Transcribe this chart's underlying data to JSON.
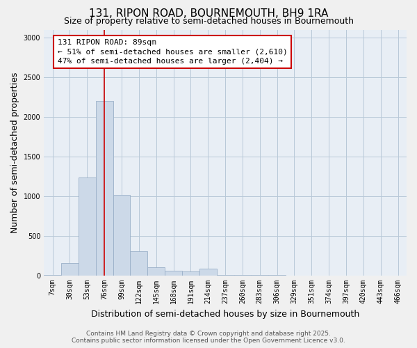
{
  "title": "131, RIPON ROAD, BOURNEMOUTH, BH9 1RA",
  "subtitle": "Size of property relative to semi-detached houses in Bournemouth",
  "xlabel": "Distribution of semi-detached houses by size in Bournemouth",
  "ylabel": "Number of semi-detached properties",
  "categories": [
    "7sqm",
    "30sqm",
    "53sqm",
    "76sqm",
    "99sqm",
    "122sqm",
    "145sqm",
    "168sqm",
    "191sqm",
    "214sqm",
    "237sqm",
    "260sqm",
    "283sqm",
    "306sqm",
    "329sqm",
    "351sqm",
    "374sqm",
    "397sqm",
    "420sqm",
    "443sqm",
    "466sqm"
  ],
  "values": [
    8,
    155,
    1240,
    2200,
    1020,
    310,
    105,
    65,
    50,
    90,
    10,
    5,
    5,
    5,
    0,
    0,
    0,
    0,
    0,
    0,
    0
  ],
  "bar_color": "#ccd9e8",
  "bar_edge_color": "#9ab0c8",
  "highlight_bar_index": 3,
  "highlight_line_color": "#cc0000",
  "property_label": "131 RIPON ROAD: 89sqm",
  "annotation_line1": "← 51% of semi-detached houses are smaller (2,610)",
  "annotation_line2": "47% of semi-detached houses are larger (2,404) →",
  "annotation_box_color": "#ffffff",
  "annotation_box_edge_color": "#cc0000",
  "ylim": [
    0,
    3100
  ],
  "yticks": [
    0,
    500,
    1000,
    1500,
    2000,
    2500,
    3000
  ],
  "footer_line1": "Contains HM Land Registry data © Crown copyright and database right 2025.",
  "footer_line2": "Contains public sector information licensed under the Open Government Licence v3.0.",
  "bg_color": "#f0f0f0",
  "plot_bg_color": "#e8eef5",
  "grid_color": "#b8c8d8",
  "title_fontsize": 11,
  "subtitle_fontsize": 9,
  "axis_label_fontsize": 9,
  "tick_fontsize": 7,
  "footer_fontsize": 6.5,
  "annotation_fontsize": 8
}
